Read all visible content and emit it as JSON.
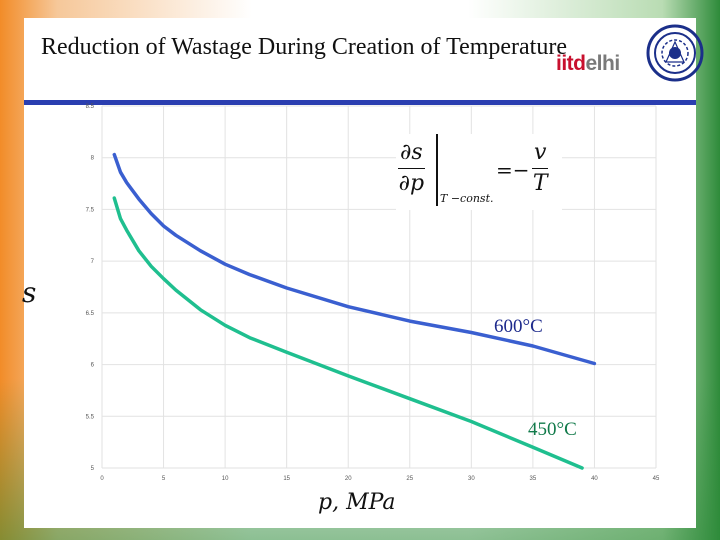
{
  "slide": {
    "title": "Reduction of Wastage During Creation of Temperature",
    "logo_part1": "iitd",
    "logo_part2": "elhi"
  },
  "formula": {
    "numerator": "∂s",
    "denominator": "∂p",
    "condition": "T −const.",
    "equals": "=−",
    "rhs_numerator": "v",
    "rhs_denominator": "T"
  },
  "chart_data": {
    "type": "line",
    "title": "",
    "xlabel": "p, MPa",
    "ylabel": "s",
    "xlim": [
      0,
      45
    ],
    "ylim": [
      5,
      8.5
    ],
    "x_ticks": [
      "0",
      "5",
      "10",
      "15",
      "20",
      "25",
      "30",
      "35",
      "40",
      "45"
    ],
    "y_ticks": [
      "5",
      "5.5",
      "6",
      "6.5",
      "7",
      "7.5",
      "8",
      "8.5"
    ],
    "series": [
      {
        "name": "600°C",
        "color": "#3a5fd0",
        "x": [
          1,
          1.5,
          2,
          3,
          4,
          5,
          6,
          8,
          10,
          12,
          15,
          20,
          25,
          30,
          35,
          40
        ],
        "y": [
          8.03,
          7.86,
          7.76,
          7.6,
          7.46,
          7.34,
          7.25,
          7.1,
          6.97,
          6.87,
          6.74,
          6.56,
          6.42,
          6.31,
          6.18,
          6.01
        ]
      },
      {
        "name": "450°C",
        "color": "#1fbf8f",
        "x": [
          1,
          1.5,
          2,
          3,
          4,
          5,
          6,
          8,
          10,
          12,
          15,
          20,
          25,
          30,
          35,
          39
        ],
        "y": [
          7.61,
          7.41,
          7.3,
          7.1,
          6.95,
          6.83,
          6.72,
          6.53,
          6.38,
          6.26,
          6.12,
          5.89,
          5.67,
          5.45,
          5.2,
          5.0
        ]
      }
    ]
  }
}
